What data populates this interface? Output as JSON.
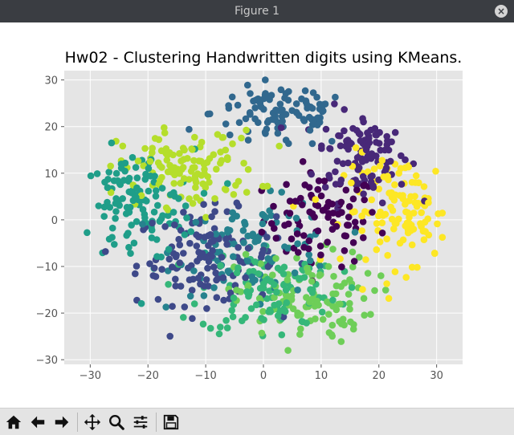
{
  "window": {
    "title": "Figure 1",
    "close_label": "×"
  },
  "toolbar": {
    "buttons": [
      {
        "name": "home-button",
        "icon": "home-icon"
      },
      {
        "name": "back-button",
        "icon": "arrow-left-icon"
      },
      {
        "name": "forward-button",
        "icon": "arrow-right-icon"
      },
      {
        "name": "pan-button",
        "icon": "move-icon"
      },
      {
        "name": "zoom-button",
        "icon": "magnifier-icon"
      },
      {
        "name": "configure-subplots-button",
        "icon": "sliders-icon"
      },
      {
        "name": "save-button",
        "icon": "floppy-disk-icon"
      }
    ]
  },
  "chart_data": {
    "type": "scatter",
    "title": "Hw02 - Clustering Handwritten digits using KMeans.",
    "xlabel": "",
    "ylabel": "",
    "xlim": [
      -34.5,
      34.5
    ],
    "ylim": [
      -31,
      32
    ],
    "xticks": [
      -30,
      -20,
      -10,
      0,
      10,
      20,
      30
    ],
    "yticks": [
      -30,
      -20,
      -10,
      0,
      10,
      20,
      30
    ],
    "grid": true,
    "background": "#e5e5e5",
    "colors": [
      "#440154",
      "#482878",
      "#3e4989",
      "#31688e",
      "#26828e",
      "#1f9e89",
      "#35b779",
      "#6ece58",
      "#b5de2b",
      "#fde725"
    ],
    "clusters": [
      {
        "center": [
          10,
          0
        ],
        "spread": [
          5,
          5
        ],
        "count": 90
      },
      {
        "center": [
          17,
          14
        ],
        "spread": [
          4,
          5
        ],
        "count": 110
      },
      {
        "center": [
          -10,
          -8
        ],
        "spread": [
          6,
          5
        ],
        "count": 130
      },
      {
        "center": [
          3,
          23
        ],
        "spread": [
          6,
          4
        ],
        "count": 100
      },
      {
        "center": [
          -1,
          -6
        ],
        "spread": [
          7,
          5
        ],
        "count": 90
      },
      {
        "center": [
          -22,
          3
        ],
        "spread": [
          5,
          6
        ],
        "count": 120
      },
      {
        "center": [
          1,
          -15
        ],
        "spread": [
          6,
          5
        ],
        "count": 110
      },
      {
        "center": [
          7,
          -17
        ],
        "spread": [
          6,
          5
        ],
        "count": 110
      },
      {
        "center": [
          -13,
          11
        ],
        "spread": [
          6,
          4
        ],
        "count": 120
      },
      {
        "center": [
          24,
          2
        ],
        "spread": [
          5,
          6
        ],
        "count": 120
      }
    ]
  }
}
